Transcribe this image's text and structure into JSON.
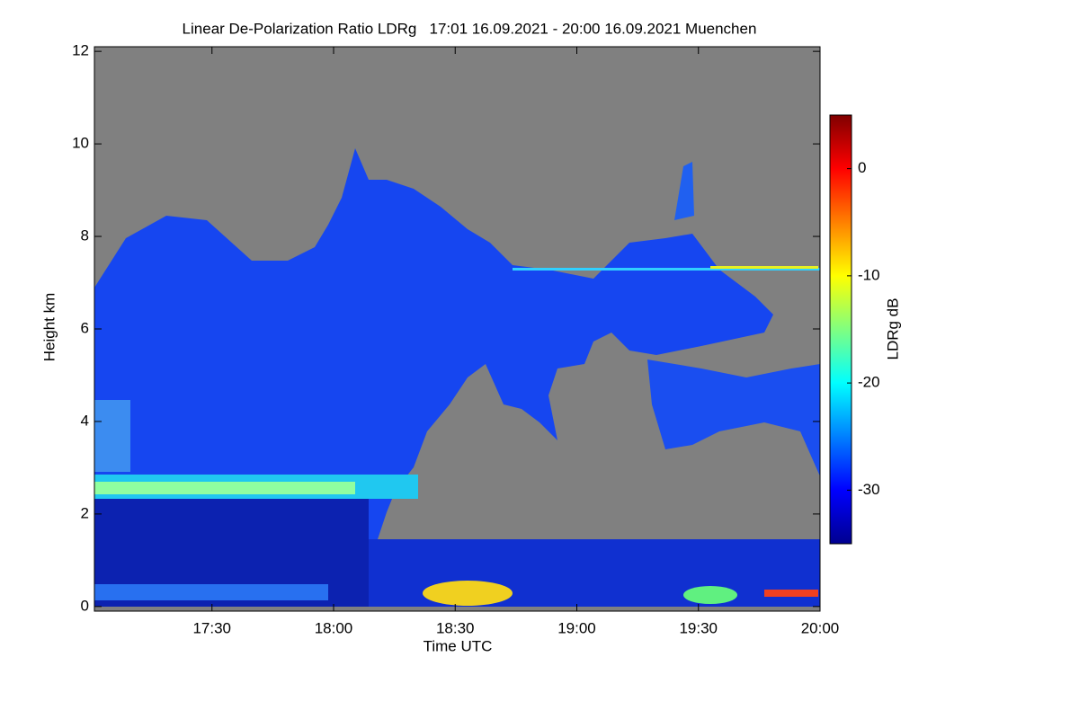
{
  "chart_data": {
    "type": "heatmap",
    "title": "Linear De-Polarization Ratio LDRg   17:01 16.09.2021 - 20:00 16.09.2021 Muenchen",
    "x_label": "Time UTC",
    "y_label": "Height km",
    "colorbar_label": "LDRg dB",
    "xlim": [
      1,
      180
    ],
    "xticks": [
      {
        "value": 30,
        "label": "17:30"
      },
      {
        "value": 60,
        "label": "18:00"
      },
      {
        "value": 90,
        "label": "18:30"
      },
      {
        "value": 120,
        "label": "19:00"
      },
      {
        "value": 150,
        "label": "19:30"
      },
      {
        "value": 180,
        "label": "20:00"
      }
    ],
    "ylim": [
      -0.1,
      12.1
    ],
    "yticks": [
      0,
      2,
      4,
      6,
      8,
      10,
      12
    ],
    "clim": [
      -35,
      5
    ],
    "cticks": [
      0,
      -10,
      -20,
      -30
    ],
    "colormap": [
      "#00008f",
      "#0000ff",
      "#0080ff",
      "#00ffff",
      "#80ff80",
      "#ffff00",
      "#ff8000",
      "#ff0000",
      "#800000"
    ],
    "missing_color": "#808080"
  }
}
